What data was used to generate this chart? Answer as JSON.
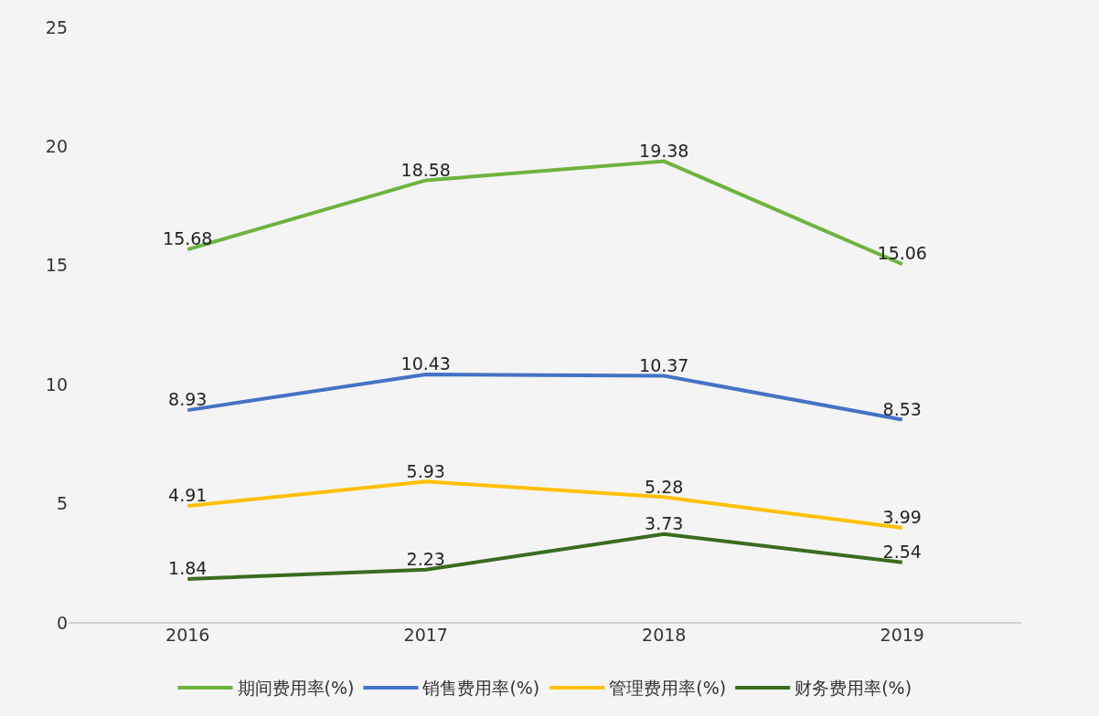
{
  "chart_data": {
    "type": "line",
    "categories": [
      "2016",
      "2017",
      "2018",
      "2019"
    ],
    "series": [
      {
        "name": "期间费用率(%)",
        "color": "#6db33f",
        "values": [
          15.68,
          18.58,
          19.38,
          15.06
        ]
      },
      {
        "name": "销售费用率(%)",
        "color": "#4472c4",
        "values": [
          8.93,
          10.43,
          10.37,
          8.53
        ]
      },
      {
        "name": "管理费用率(%)",
        "color": "#ffc000",
        "values": [
          4.91,
          5.93,
          5.28,
          3.99
        ]
      },
      {
        "name": "财务费用率(%)",
        "color": "#3a6b1f",
        "values": [
          1.84,
          2.23,
          3.73,
          2.54
        ]
      }
    ],
    "ylim": [
      0,
      25
    ],
    "yticks": [
      0,
      5,
      10,
      15,
      20,
      25
    ],
    "grid": false,
    "legend": "bottom",
    "data_labels": true,
    "marker": "none",
    "line_style": "solid"
  }
}
